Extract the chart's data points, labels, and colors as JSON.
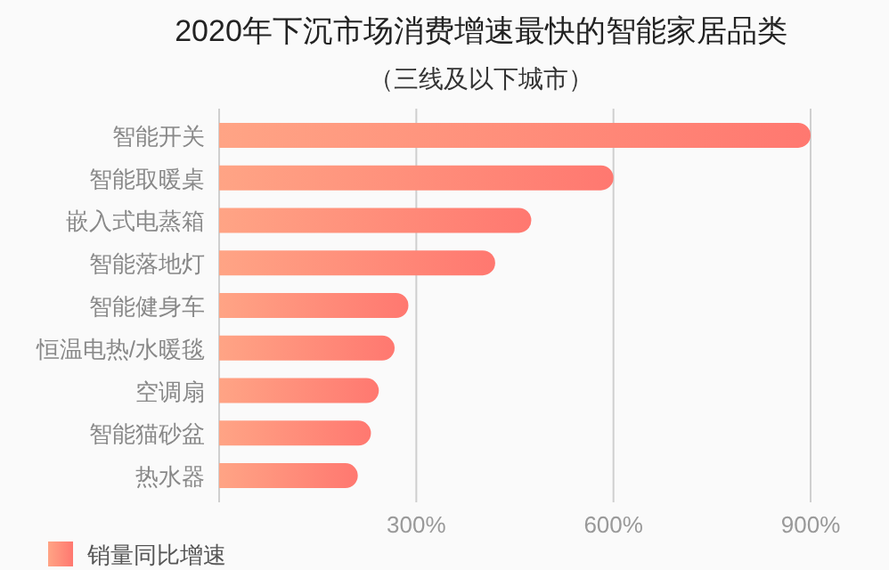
{
  "chart_data": {
    "type": "bar",
    "orientation": "horizontal",
    "title": "2020年下沉市场消费增速最快的智能家居品类",
    "subtitle": "（三线及以下城市）",
    "categories": [
      "智能开关",
      "智能取暖桌",
      "嵌入式电蒸箱",
      "智能落地灯",
      "智能健身车",
      "恒温电热/水暖毯",
      "空调扇",
      "智能猫砂盆",
      "热水器"
    ],
    "series": [
      {
        "name": "销量同比增速",
        "color": "#ff7870",
        "values": [
          900,
          600,
          475,
          420,
          288,
          267,
          243,
          231,
          211
        ]
      }
    ],
    "xlim": [
      0,
      900
    ],
    "xticks": [
      {
        "value": 0,
        "label": null
      },
      {
        "value": 300,
        "label": "300%"
      },
      {
        "value": 600,
        "label": "600%"
      },
      {
        "value": 900,
        "label": "900%"
      }
    ],
    "grid": "x",
    "legend": "bottom left"
  }
}
